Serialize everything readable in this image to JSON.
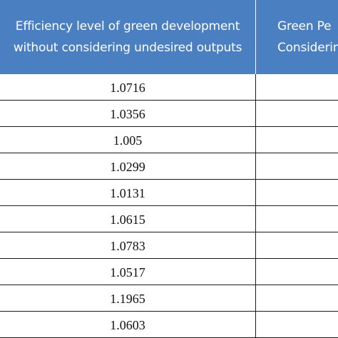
{
  "table": {
    "headers": [
      "",
      "Efficiency level of green development without considering undesired outputs",
      "Green Pe\nConsiderin"
    ],
    "rows": [
      [
        "",
        "1.0716",
        ""
      ],
      [
        "",
        "1.0356",
        ""
      ],
      [
        "",
        "1.005",
        ""
      ],
      [
        "",
        "1.0299",
        ""
      ],
      [
        "",
        "1.0131",
        ""
      ],
      [
        "",
        "1.0615",
        ""
      ],
      [
        "",
        "1.0783",
        ""
      ],
      [
        "",
        "1.0517",
        ""
      ],
      [
        "",
        "1.1965",
        ""
      ],
      [
        "",
        "1.0603",
        ""
      ]
    ]
  },
  "colors": {
    "header_background": "#4a7fc1",
    "header_text": "#ffffff",
    "grid_line": "#1a1a1a"
  }
}
